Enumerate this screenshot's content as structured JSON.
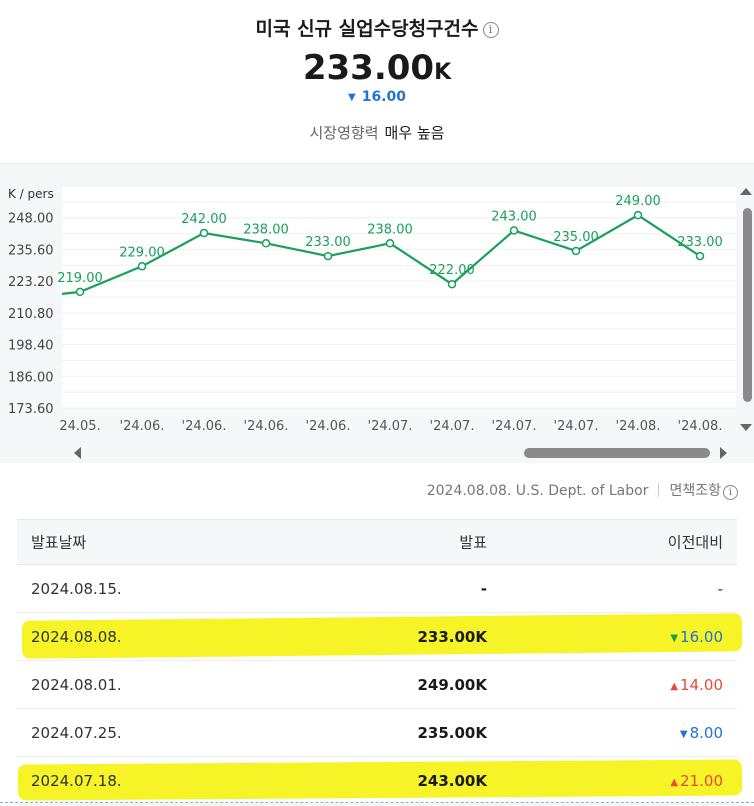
{
  "header": {
    "title": "미국 신규 실업수당청구건수",
    "info_glyph": "i",
    "value": "233.00",
    "unit": "K",
    "change_arrow": "▼",
    "change_value": "16.00",
    "impact_label": "시장영향력",
    "impact_value": "매우 높음"
  },
  "chart_data": {
    "type": "line",
    "ylabel": "K / pers",
    "yticks": [
      "248.00",
      "235.60",
      "223.20",
      "210.80",
      "198.40",
      "186.00",
      "173.60"
    ],
    "ylim": [
      173.6,
      260.4
    ],
    "xticks": [
      "24.05.",
      "'24.06.",
      "'24.06.",
      "'24.06.",
      "'24.06.",
      "'24.07.",
      "'24.07.",
      "'24.07.",
      "'24.07.",
      "'24.08.",
      "'24.08."
    ],
    "values": [
      219,
      229,
      242,
      238,
      233,
      238,
      222,
      243,
      235,
      249,
      233
    ],
    "data_labels": [
      "219.00",
      "229.00",
      "242.00",
      "238.00",
      "233.00",
      "238.00",
      "222.00",
      "243.00",
      "235.00",
      "249.00",
      "233.00"
    ],
    "line_color": "#1aa05a",
    "grid": true
  },
  "source": {
    "text": "2024.08.08. U.S. Dept. of Labor",
    "disclaimer": "면책조항"
  },
  "table": {
    "headers": {
      "date": "발표날짜",
      "actual": "발표",
      "change": "이전대비"
    },
    "rows": [
      {
        "date": "2024.08.15.",
        "actual": "-",
        "change": "-",
        "dir": "none"
      },
      {
        "date": "2024.08.08.",
        "actual": "233.00K",
        "change": "16.00",
        "dir": "down",
        "arrow": "▼"
      },
      {
        "date": "2024.08.01.",
        "actual": "249.00K",
        "change": "14.00",
        "dir": "up",
        "arrow": "▲"
      },
      {
        "date": "2024.07.25.",
        "actual": "235.00K",
        "change": "8.00",
        "dir": "down",
        "arrow": "▼"
      },
      {
        "date": "2024.07.18.",
        "actual": "243.00K",
        "change": "21.00",
        "dir": "up",
        "arrow": "▲"
      }
    ]
  },
  "colors": {
    "up": "#e84a3c",
    "down": "#1f74d6",
    "highlight": "#f6f21a"
  }
}
